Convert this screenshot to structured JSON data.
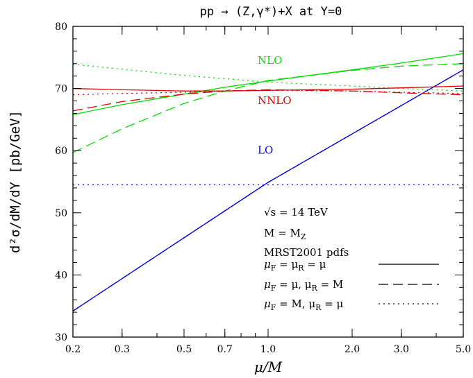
{
  "chart_data": {
    "type": "line",
    "title": "pp → (Z,γ*)+X at Y=0",
    "xlabel": "μ/M",
    "ylabel": "d²σ/dM/dY [pb/GeV]",
    "xscale": "log",
    "xlim": [
      0.2,
      5.0
    ],
    "ylim": [
      30,
      80
    ],
    "x_ticks": [
      0.2,
      0.3,
      0.5,
      0.7,
      1.0,
      2.0,
      3.0,
      5.0
    ],
    "x_tick_labels": [
      "0.2",
      "0.3",
      "0.5",
      "0.7",
      "1.0",
      "2.0",
      "3.0",
      "5.0"
    ],
    "y_ticks": [
      30,
      40,
      50,
      60,
      70,
      80
    ],
    "y_tick_labels": [
      "30",
      "40",
      "50",
      "60",
      "70",
      "80"
    ],
    "grid": false,
    "series": [
      {
        "order": "LO",
        "scheme": "muF_muR_mu",
        "color": "#0000dd",
        "style": "solid",
        "points": [
          [
            0.2,
            34.2
          ],
          [
            1.0,
            54.9
          ],
          [
            5.0,
            73.0
          ]
        ]
      },
      {
        "order": "LO",
        "scheme": "muF_mu_muR_M",
        "color": "#0000dd",
        "style": "dashed",
        "points": [
          [
            0.2,
            34.2
          ],
          [
            1.0,
            54.9
          ],
          [
            5.0,
            73.0
          ]
        ]
      },
      {
        "order": "LO",
        "scheme": "muF_M_muR_mu",
        "color": "#0000dd",
        "style": "dotted",
        "points": [
          [
            0.2,
            54.5
          ],
          [
            5.0,
            54.5
          ]
        ]
      },
      {
        "order": "NLO",
        "scheme": "muF_muR_mu",
        "color": "#00dd00",
        "style": "solid",
        "points": [
          [
            0.2,
            65.8
          ],
          [
            0.3,
            67.4
          ],
          [
            0.5,
            69.1
          ],
          [
            0.7,
            70.2
          ],
          [
            1.0,
            71.2
          ],
          [
            2.0,
            73.0
          ],
          [
            3.0,
            74.1
          ],
          [
            5.0,
            75.6
          ]
        ]
      },
      {
        "order": "NLO",
        "scheme": "muF_mu_muR_M",
        "color": "#00dd00",
        "style": "dashed",
        "points": [
          [
            0.2,
            59.7
          ],
          [
            0.3,
            63.5
          ],
          [
            0.5,
            67.6
          ],
          [
            0.7,
            69.6
          ],
          [
            1.0,
            71.3
          ],
          [
            2.0,
            72.9
          ],
          [
            3.0,
            73.6
          ],
          [
            5.0,
            74.0
          ]
        ]
      },
      {
        "order": "NLO",
        "scheme": "muF_M_muR_mu",
        "color": "#00dd00",
        "style": "dotted",
        "points": [
          [
            0.2,
            73.9
          ],
          [
            0.3,
            73.1
          ],
          [
            0.5,
            72.1
          ],
          [
            0.7,
            71.6
          ],
          [
            1.0,
            71.0
          ],
          [
            2.0,
            70.4
          ],
          [
            3.0,
            70.0
          ],
          [
            5.0,
            69.6
          ]
        ]
      },
      {
        "order": "NNLO",
        "scheme": "muF_muR_mu",
        "color": "#dd0000",
        "style": "solid",
        "points": [
          [
            0.2,
            70.0
          ],
          [
            0.3,
            69.8
          ],
          [
            0.5,
            69.6
          ],
          [
            0.7,
            69.6
          ],
          [
            1.0,
            69.7
          ],
          [
            2.0,
            69.9
          ],
          [
            3.0,
            70.1
          ],
          [
            5.0,
            70.4
          ]
        ]
      },
      {
        "order": "NNLO",
        "scheme": "muF_mu_muR_M",
        "color": "#dd0000",
        "style": "dashed",
        "points": [
          [
            0.2,
            66.4
          ],
          [
            0.3,
            67.9
          ],
          [
            0.5,
            69.1
          ],
          [
            0.7,
            69.6
          ],
          [
            1.0,
            69.8
          ],
          [
            2.0,
            69.6
          ],
          [
            3.0,
            69.3
          ],
          [
            5.0,
            69.0
          ]
        ]
      },
      {
        "order": "NNLO",
        "scheme": "muF_M_muR_mu",
        "color": "#dd0000",
        "style": "dotted",
        "points": [
          [
            0.2,
            69.0
          ],
          [
            0.3,
            69.2
          ],
          [
            0.5,
            69.4
          ],
          [
            0.7,
            69.6
          ],
          [
            1.0,
            69.7
          ],
          [
            2.0,
            69.6
          ],
          [
            3.0,
            69.4
          ],
          [
            5.0,
            69.2
          ]
        ]
      }
    ],
    "curve_labels": [
      {
        "text": "NLO",
        "color": "#00dd00",
        "x": 1.0,
        "y": 74.0
      },
      {
        "text": "NNLO",
        "color": "#dd0000",
        "x": 1.0,
        "y": 67.5
      },
      {
        "text": "LO",
        "color": "#0000dd",
        "x": 1.0,
        "y": 59.5
      }
    ],
    "annotations": {
      "energy": "√s = 14 TeV",
      "mass": "M = M",
      "mass_sub": "Z",
      "pdfs": "MRST2001 pdfs"
    },
    "legend": {
      "placement": "bottom-right",
      "entries": [
        {
          "text": "μ",
          "sub": "F",
          "rest": " = μ",
          "sub2": "R",
          "rest2": " = μ",
          "style": "solid"
        },
        {
          "text": "μ",
          "sub": "F",
          "rest": " = μ, μ",
          "sub2": "R",
          "rest2": " = M",
          "style": "dashed"
        },
        {
          "text": "μ",
          "sub": "F",
          "rest": " = M, μ",
          "sub2": "R",
          "rest2": " = μ",
          "style": "dotted"
        }
      ]
    }
  }
}
